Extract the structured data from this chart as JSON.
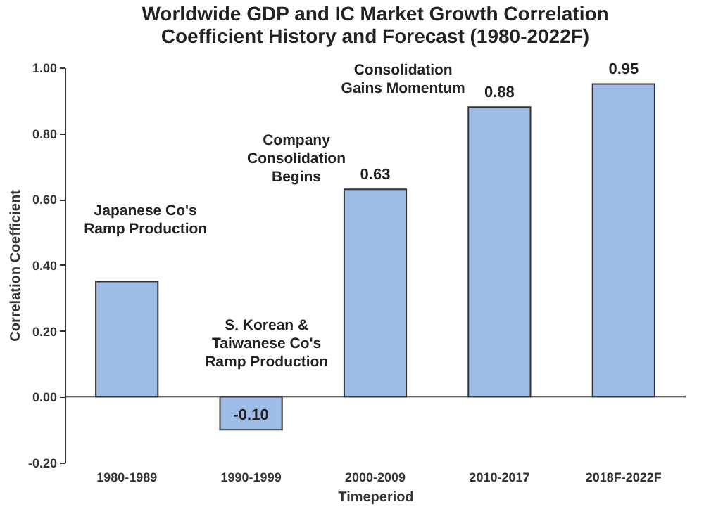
{
  "chart_data": {
    "type": "bar",
    "title": "Worldwide GDP and IC Market Growth Correlation\nCoefficient History and Forecast (1980-2022F)",
    "xlabel": "Timeperiod",
    "ylabel": "Correlation Coefficient",
    "categories": [
      "1980-1989",
      "1990-1999",
      "2000-2009",
      "2010-2017",
      "2018F-2022F"
    ],
    "values": [
      0.35,
      -0.1,
      0.63,
      0.88,
      0.95
    ],
    "value_labels": [
      null,
      "-0.10",
      "0.63",
      "0.88",
      "0.95"
    ],
    "color": "#9dbde6",
    "ylim": [
      -0.2,
      1.0
    ],
    "yticks": [
      {
        "value": -0.2,
        "label": "-0.20"
      },
      {
        "value": 0,
        "label": "0.00"
      },
      {
        "value": 0.2,
        "label": "0.20"
      },
      {
        "value": 0.4,
        "label": "0.40"
      },
      {
        "value": 0.6,
        "label": "0.60"
      },
      {
        "value": 0.8,
        "label": "0.80"
      },
      {
        "value": 1.0,
        "label": "1.00"
      }
    ],
    "annotations": [
      "Japanese Co's\nRamp Production",
      "S. Korean &\nTaiwanese Co's\nRamp Production",
      "Company\nConsolidation\nBegins",
      "Consolidation\nGains Momentum"
    ]
  }
}
